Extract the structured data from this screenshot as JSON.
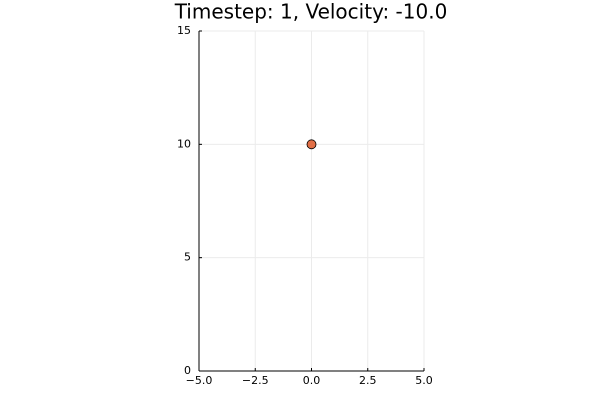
{
  "chart_data": {
    "type": "scatter",
    "title": "Timestep: 1, Velocity: -10.0",
    "x": [
      0
    ],
    "values": [
      10
    ],
    "color": "#e26f46",
    "xlim": [
      -5,
      5
    ],
    "xticks": [
      {
        "value": -5,
        "label": "−5.0"
      },
      {
        "value": -2.5,
        "label": "−2.5"
      },
      {
        "value": 0,
        "label": "0.0"
      },
      {
        "value": 2.5,
        "label": "2.5"
      },
      {
        "value": 5,
        "label": "5.0"
      }
    ],
    "ylim": [
      0,
      15
    ],
    "yticks": [
      0,
      5,
      10,
      15
    ],
    "grid": true
  }
}
